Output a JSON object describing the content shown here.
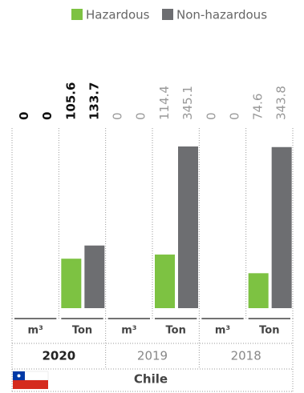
{
  "chart_data": {
    "type": "bar",
    "groups": [
      "2020",
      "2019",
      "2018"
    ],
    "categories": [
      "m³",
      "Ton",
      "m³",
      "Ton",
      "m³",
      "Ton"
    ],
    "series": [
      {
        "name": "Hazardous",
        "color": "#7dc242",
        "values": [
          0,
          105.6,
          0,
          114.4,
          0,
          74.6
        ]
      },
      {
        "name": "Non-hazardous",
        "color": "#6d6e71",
        "values": [
          0,
          133.7,
          0,
          345.1,
          0,
          343.8
        ]
      }
    ],
    "country": "Chile"
  }
}
